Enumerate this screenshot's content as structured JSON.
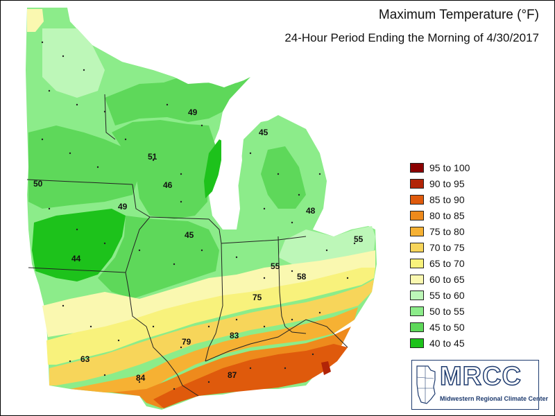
{
  "title": "Maximum Temperature (°F)",
  "subtitle": "24-Hour Period Ending the Morning of 4/30/2017",
  "legend": [
    {
      "label": "95 to 100",
      "color": "#8b0000"
    },
    {
      "label": "90 to 95",
      "color": "#b22407"
    },
    {
      "label": "85 to 90",
      "color": "#df5a0c"
    },
    {
      "label": "80 to 85",
      "color": "#ee8a1c"
    },
    {
      "label": "75 to 80",
      "color": "#f6b133"
    },
    {
      "label": "70 to 75",
      "color": "#f7d55a"
    },
    {
      "label": "65 to 70",
      "color": "#f8f27c"
    },
    {
      "label": "60 to 65",
      "color": "#faf8b0"
    },
    {
      "label": "55 to 60",
      "color": "#bdf7b8"
    },
    {
      "label": "50 to 55",
      "color": "#8cec8a"
    },
    {
      "label": "45 to 50",
      "color": "#5ed85a"
    },
    {
      "label": "40 to 45",
      "color": "#1dc21b"
    }
  ],
  "value_labels": [
    "49",
    "45",
    "51",
    "46",
    "50",
    "49",
    "48",
    "45",
    "55",
    "44",
    "55",
    "58",
    "75",
    "79",
    "83",
    "63",
    "84",
    "87"
  ],
  "logo": {
    "name": "MRCC",
    "subtitle": "Midwestern Regional Climate Center"
  }
}
